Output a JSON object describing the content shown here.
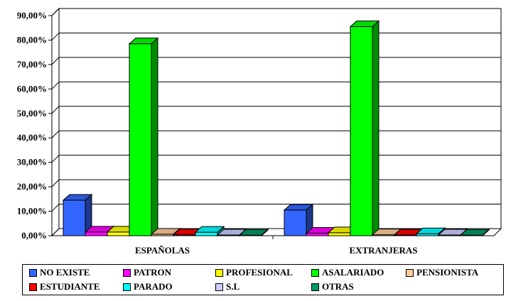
{
  "chart_data": {
    "type": "bar",
    "three_d": true,
    "categories": [
      "ESPAÑOLAS",
      "EXTRANJERAS"
    ],
    "y_ticks": [
      "0,00%",
      "10,00%",
      "20,00%",
      "30,00%",
      "40,00%",
      "50,00%",
      "60,00%",
      "70,00%",
      "80,00%",
      "90,00%"
    ],
    "ylim": [
      0,
      90
    ],
    "grid": true,
    "legend_position": "bottom",
    "series": [
      {
        "name": "NO EXISTE",
        "color": "#3366FF",
        "values": [
          14.5,
          10.5
        ]
      },
      {
        "name": "PATRON",
        "color": "#FF00FF",
        "values": [
          1.5,
          1.0
        ]
      },
      {
        "name": "PROFESIONAL",
        "color": "#FFFF00",
        "values": [
          1.5,
          1.2
        ]
      },
      {
        "name": "ASALARIADO",
        "color": "#00FF00",
        "values": [
          78.5,
          85.5
        ]
      },
      {
        "name": "PENSIONISTA",
        "color": "#FFCC99",
        "values": [
          0.6,
          0.4
        ]
      },
      {
        "name": "ESTUDIANTE",
        "color": "#FF0000",
        "values": [
          0.4,
          0.3
        ]
      },
      {
        "name": "PARADO",
        "color": "#00FFFF",
        "values": [
          1.4,
          0.8
        ]
      },
      {
        "name": "S.L",
        "color": "#CCCCFF",
        "values": [
          0.3,
          0.3
        ]
      },
      {
        "name": "OTRAS",
        "color": "#009966",
        "values": [
          0.2,
          0.2
        ]
      }
    ]
  }
}
